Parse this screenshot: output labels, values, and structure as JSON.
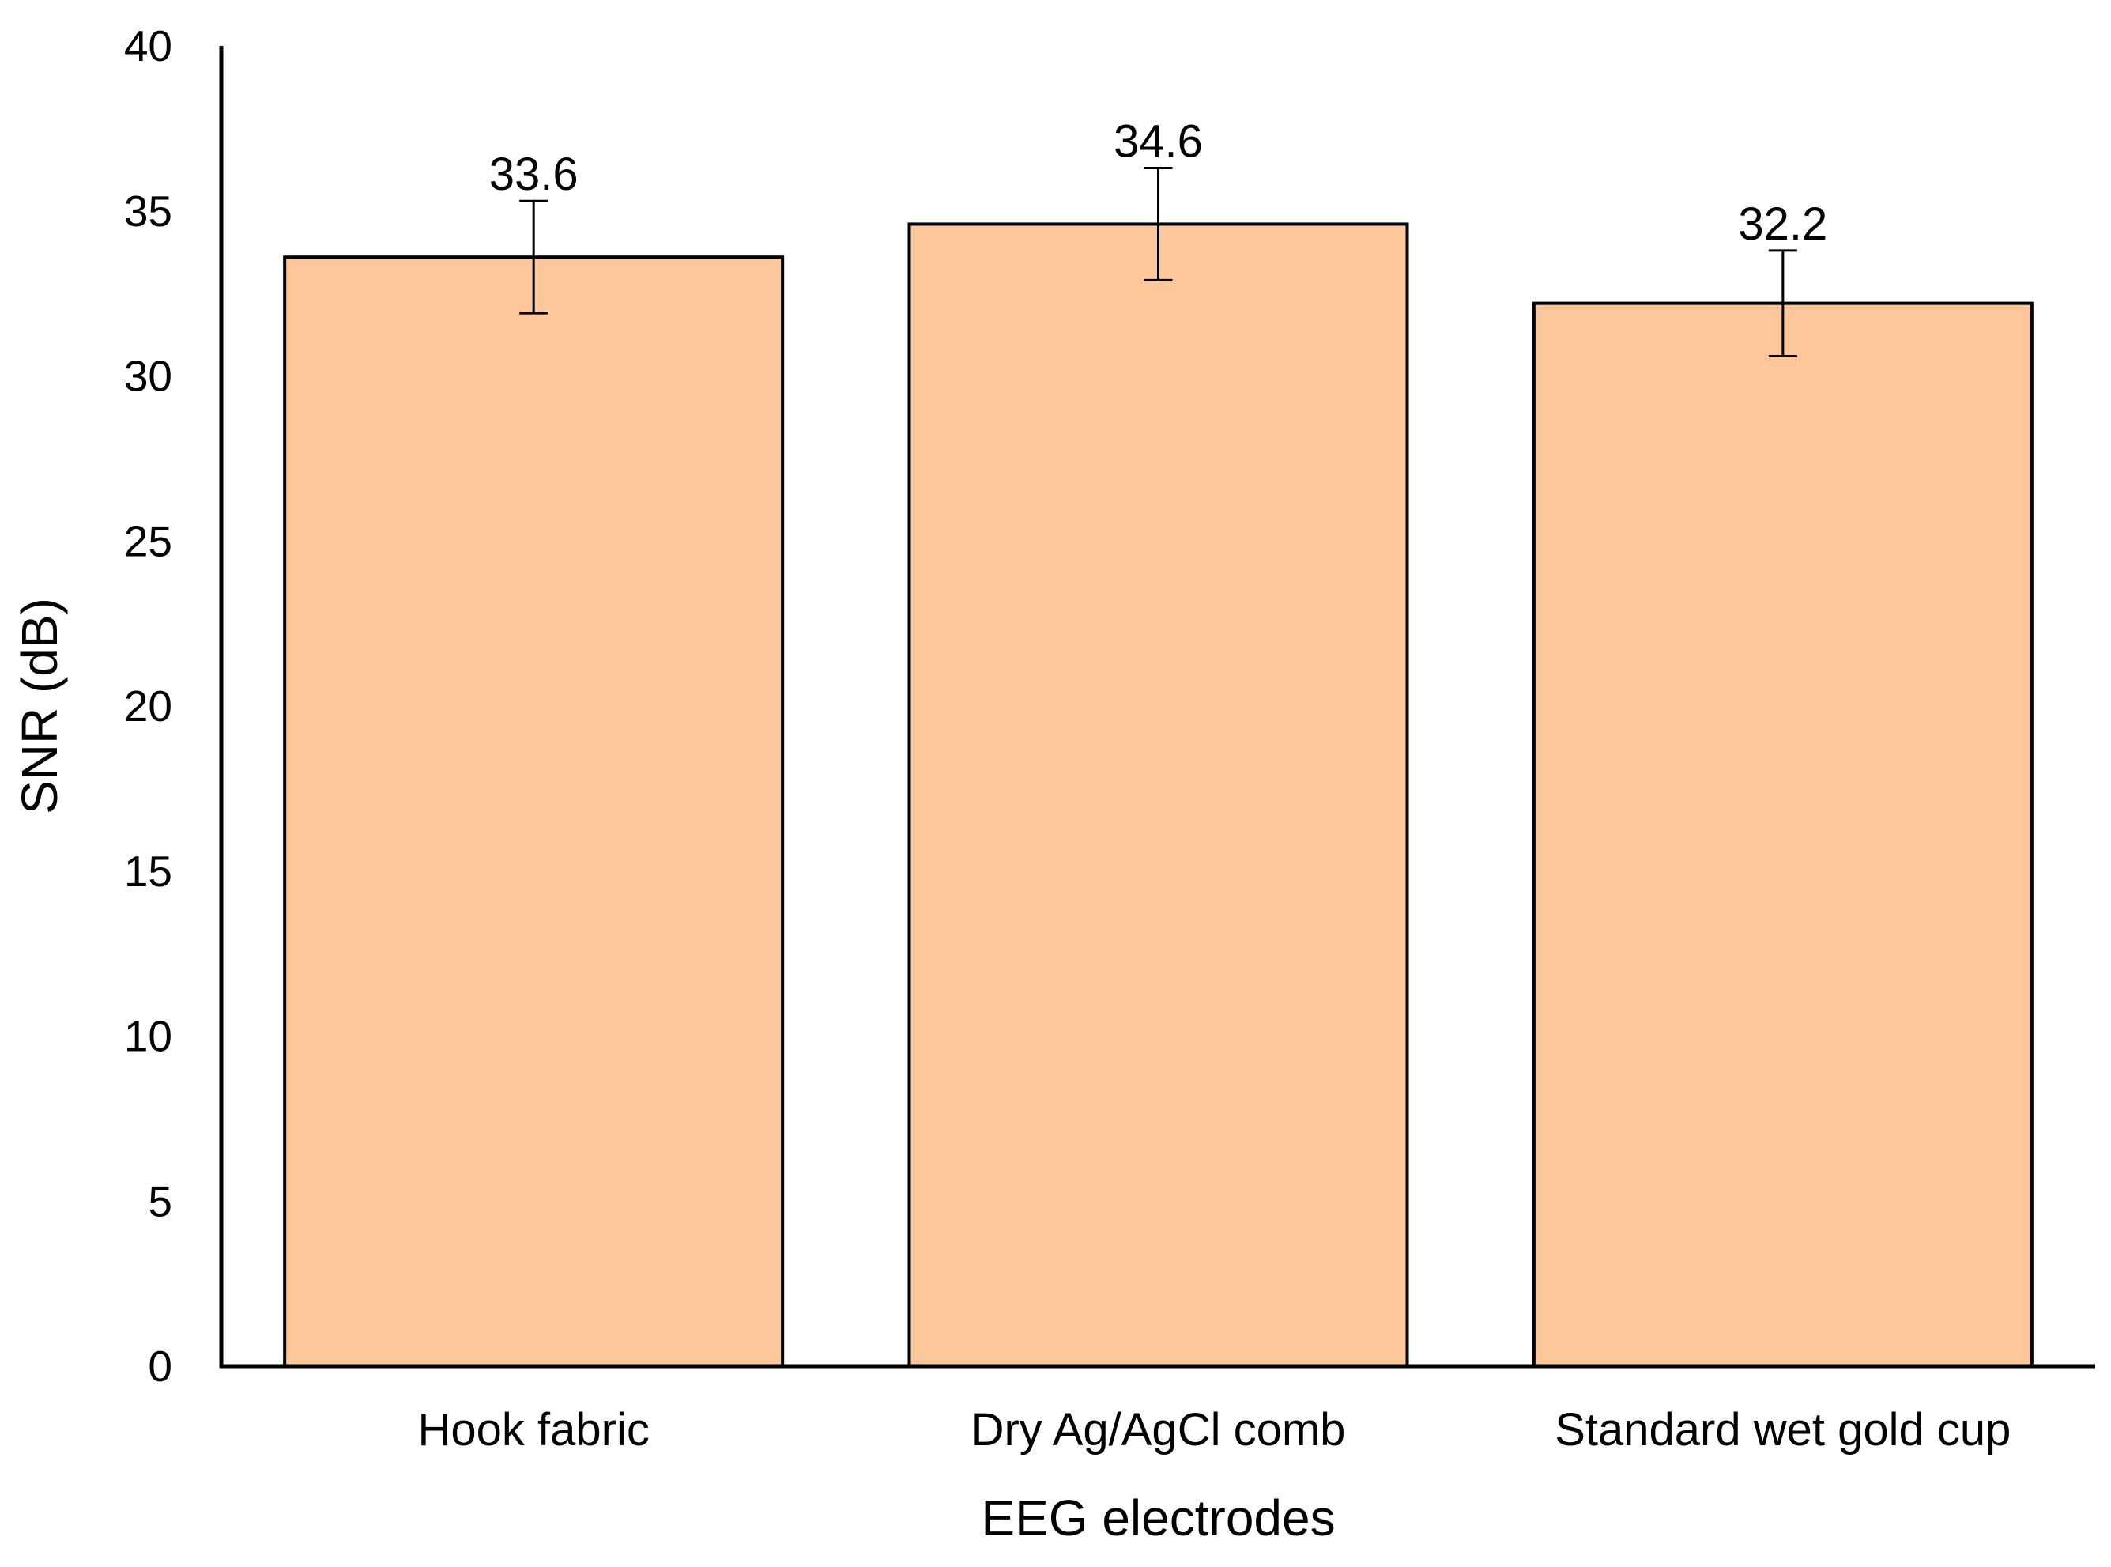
{
  "chart_data": {
    "type": "bar",
    "categories": [
      "Hook fabric",
      "Dry Ag/AgCl comb",
      "Standard wet gold cup"
    ],
    "values": [
      33.6,
      34.6,
      32.2
    ],
    "data_labels": [
      "33.6",
      "34.6",
      "32.2"
    ],
    "error_bars": [
      {
        "low": 31.9,
        "high": 35.3
      },
      {
        "low": 32.9,
        "high": 36.3
      },
      {
        "low": 30.6,
        "high": 33.8
      }
    ],
    "title": "",
    "xlabel": "EEG electrodes",
    "ylabel": "SNR (dB)",
    "ylim": [
      0,
      40
    ],
    "yticks": [
      0,
      5,
      10,
      15,
      20,
      25,
      30,
      35,
      40
    ],
    "ytick_labels": [
      "0",
      "5",
      "10",
      "15",
      "20",
      "25",
      "30",
      "35",
      "40"
    ],
    "grid": false,
    "legend": "none",
    "bar_color": "#fcc89b",
    "bar_edge_color": "#000000"
  }
}
